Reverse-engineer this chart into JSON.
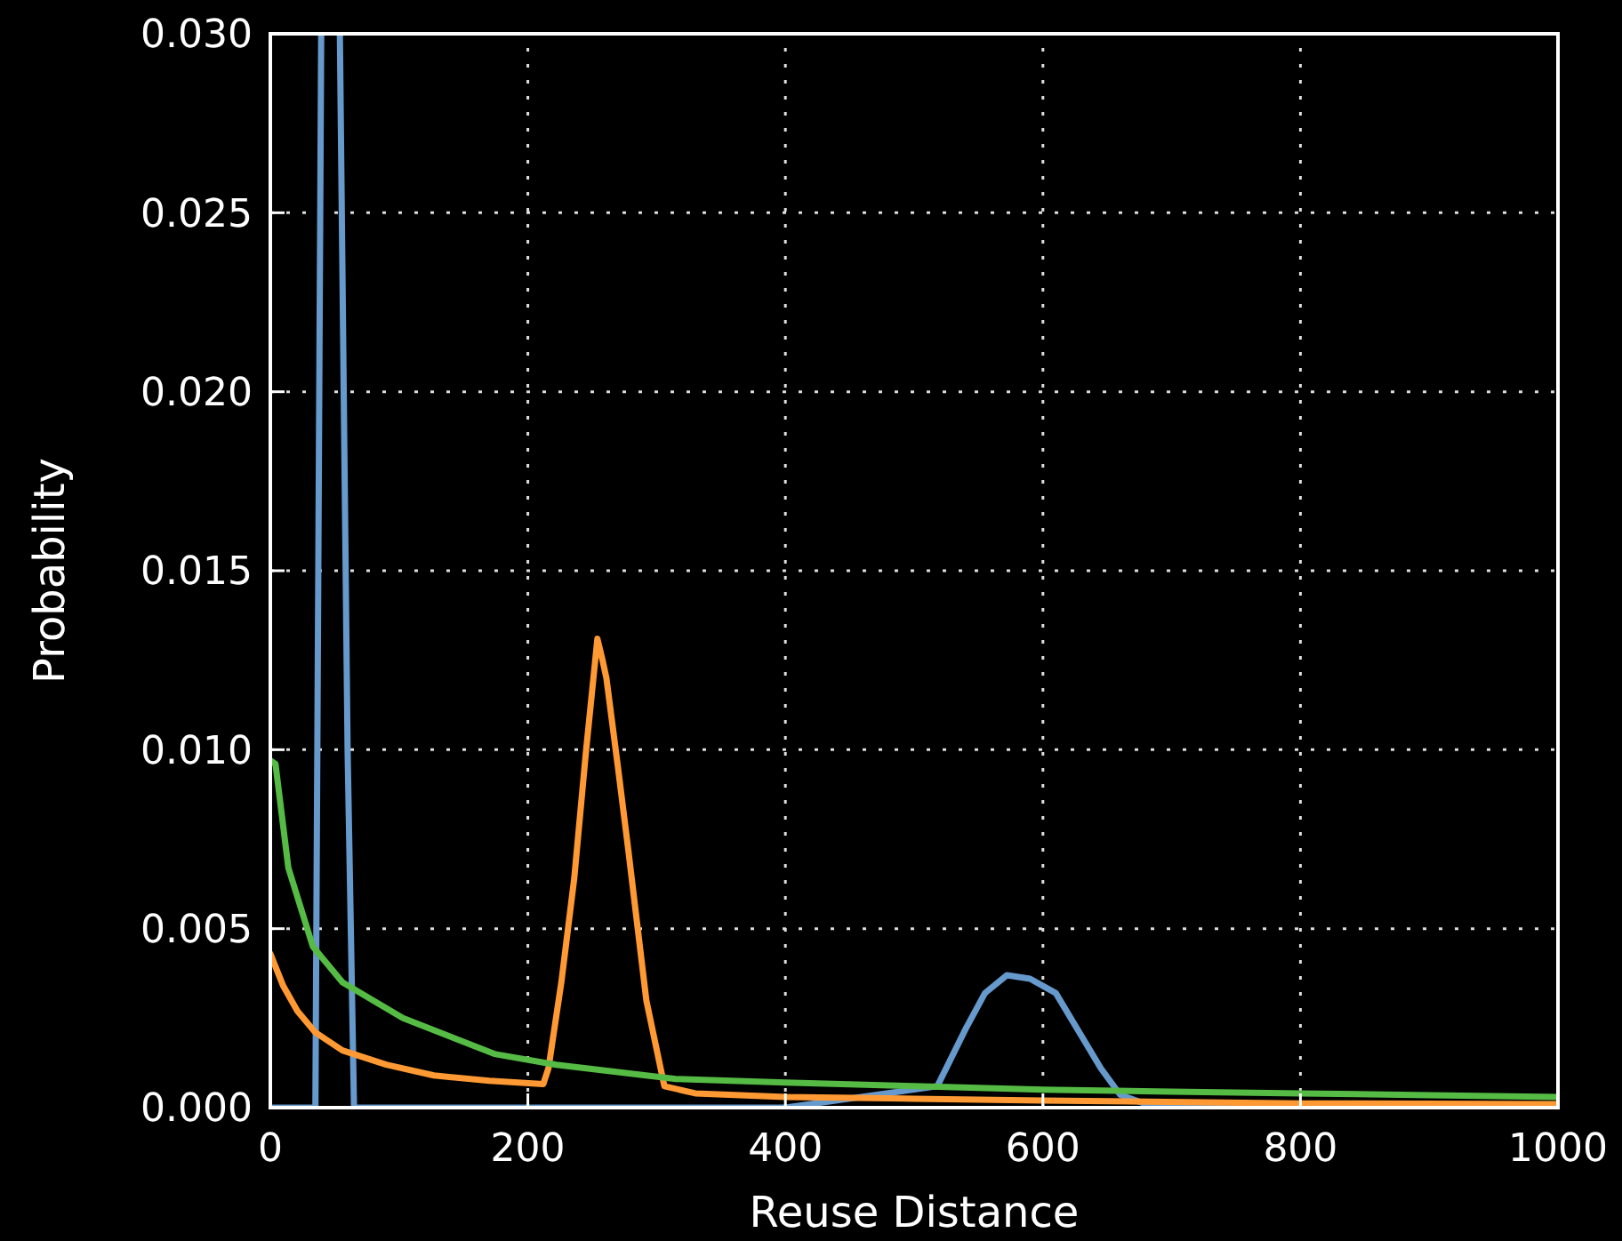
{
  "chart_data": {
    "type": "line",
    "xlabel": "Reuse Distance",
    "ylabel": "Probability",
    "xlim": [
      0,
      1000
    ],
    "ylim": [
      0,
      0.03
    ],
    "xticks": [
      0,
      200,
      400,
      600,
      800,
      1000
    ],
    "yticks": [
      {
        "value": 0,
        "label": "0.000"
      },
      {
        "value": 0.005,
        "label": "0.005"
      },
      {
        "value": 0.01,
        "label": "0.010"
      },
      {
        "value": 0.015,
        "label": "0.015"
      },
      {
        "value": 0.02,
        "label": "0.020"
      },
      {
        "value": 0.025,
        "label": "0.025"
      },
      {
        "value": 0.03,
        "label": "0.030"
      }
    ],
    "grid": true,
    "marker": "none",
    "line_style": "solid",
    "series": [
      {
        "color": "#6699cc",
        "x": [
          0,
          35,
          39.5,
          46,
          54,
          60,
          65,
          100,
          200,
          400,
          518,
          540,
          555,
          572,
          590,
          610,
          630,
          645,
          660,
          680,
          800,
          1000
        ],
        "values": [
          0,
          0,
          0.03,
          null,
          0.03,
          0.01,
          0,
          0,
          0,
          0,
          0.0006,
          0.0022,
          0.0032,
          0.0037,
          0.0036,
          0.0032,
          0.002,
          0.0011,
          0.00036,
          0.0001,
          0,
          0
        ]
      },
      {
        "color": "#ff9933",
        "x": [
          0,
          10,
          21,
          35,
          56,
          90,
          127,
          170,
          212,
          216,
          226,
          236,
          245,
          254,
          258,
          261,
          270,
          278,
          292,
          306,
          330,
          400,
          500,
          600,
          800,
          1000
        ],
        "values": [
          0.0043,
          0.0034,
          0.0027,
          0.0021,
          0.0016,
          0.0012,
          0.0009,
          0.00075,
          0.00066,
          0.0011,
          0.0035,
          0.0064,
          0.0099,
          0.0131,
          0.0125,
          0.012,
          0.0095,
          0.0072,
          0.003,
          0.0006,
          0.0004,
          0.0003,
          0.00025,
          0.0002,
          0.00012,
          0.0001
        ]
      },
      {
        "color": "#55bb44",
        "x": [
          0,
          4,
          14,
          33,
          56,
          103,
          174,
          222,
          315,
          400,
          500,
          600,
          700,
          800,
          900,
          1000
        ],
        "values": [
          0.0097,
          0.0096,
          0.0067,
          0.0045,
          0.0035,
          0.0025,
          0.0015,
          0.0012,
          0.0008,
          0.0007,
          0.0006,
          0.0005,
          0.00045,
          0.0004,
          0.00035,
          0.0003
        ]
      }
    ]
  }
}
